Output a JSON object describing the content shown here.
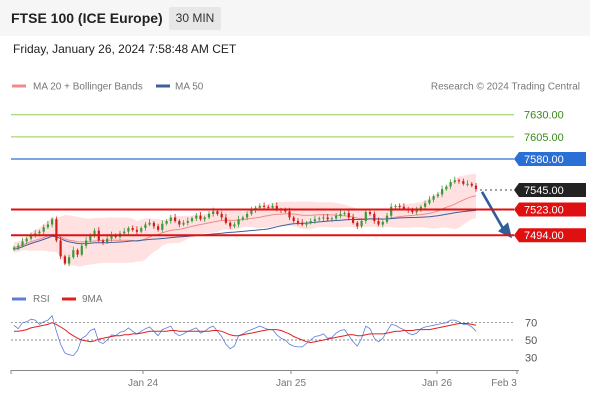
{
  "header": {
    "title": "FTSE 100 (ICE Europe)",
    "interval": "30 MIN"
  },
  "timestamp": "Friday, January 26, 2024 7:58:48 AM CET",
  "legend": {
    "ma20": "MA 20 + Bollinger Bands",
    "ma50": "MA 50"
  },
  "credit": "Research © 2024 Trading Central",
  "rsi_legend": {
    "rsi": "RSI",
    "ma9": "9MA"
  },
  "colors": {
    "up": "#3a9a3a",
    "down": "#d11a1a",
    "ma20": "#f08a8a",
    "bollinger": "#ffdcdc",
    "ma50": "#3e5f9a",
    "resistance": "#8fcf4f",
    "pivot_blue": "#2a6fd6",
    "support_red": "#e01010",
    "rsi": "#5b7fd6",
    "rsi_ma": "#e02020",
    "arrow": "#2e5f9c"
  },
  "chart_data": [
    {
      "type": "candlestick",
      "title": "FTSE 100 (ICE Europe)",
      "interval": "30 MIN",
      "x_ticks": [
        "Jan 24",
        "Jan 25",
        "Jan 26",
        "Feb 3"
      ],
      "ylim": [
        7440,
        7650
      ],
      "series": [
        {
          "name": "MA 20 + Bollinger Bands"
        },
        {
          "name": "MA 50"
        }
      ],
      "levels": [
        {
          "value": 7630.0,
          "label": "7630.00",
          "type": "resistance"
        },
        {
          "value": 7605.0,
          "label": "7605.00",
          "type": "resistance"
        },
        {
          "value": 7580.0,
          "label": "7580.00",
          "type": "pivot"
        },
        {
          "value": 7545.0,
          "label": "7545.00",
          "type": "last"
        },
        {
          "value": 7523.0,
          "label": "7523.00",
          "type": "support"
        },
        {
          "value": 7494.0,
          "label": "7494.00",
          "type": "support"
        }
      ],
      "forecast": {
        "from": 7543,
        "to": 7494,
        "direction": "down"
      },
      "closes": [
        7480,
        7482,
        7487,
        7490,
        7494,
        7496,
        7498,
        7503,
        7506,
        7512,
        7488,
        7470,
        7462,
        7469,
        7477,
        7472,
        7482,
        7488,
        7494,
        7499,
        7488,
        7486,
        7490,
        7494,
        7492,
        7496,
        7498,
        7502,
        7500,
        7498,
        7502,
        7506,
        7508,
        7504,
        7500,
        7507,
        7510,
        7514,
        7510,
        7506,
        7508,
        7510,
        7513,
        7516,
        7512,
        7514,
        7518,
        7521,
        7518,
        7514,
        7508,
        7504,
        7506,
        7512,
        7514,
        7518,
        7522,
        7525,
        7527,
        7526,
        7525,
        7527,
        7523,
        7522,
        7521,
        7514,
        7510,
        7508,
        7506,
        7508,
        7510,
        7512,
        7513,
        7514,
        7512,
        7513,
        7516,
        7518,
        7519,
        7514,
        7508,
        7504,
        7510,
        7520,
        7518,
        7510,
        7506,
        7509,
        7516,
        7526,
        7527,
        7526,
        7524,
        7522,
        7520,
        7522,
        7526,
        7530,
        7534,
        7538,
        7540,
        7546,
        7549,
        7554,
        7556,
        7555,
        7552,
        7552,
        7550,
        7546
      ],
      "rsi": {
        "ylim": [
          20,
          80
        ],
        "ticks": [
          70,
          50,
          30
        ],
        "values": [
          67,
          63,
          70,
          71,
          74,
          73,
          68,
          71,
          73,
          78,
          60,
          45,
          35,
          33,
          32,
          38,
          52,
          55,
          61,
          63,
          48,
          46,
          50,
          56,
          55,
          59,
          60,
          64,
          60,
          57,
          60,
          63,
          65,
          60,
          55,
          62,
          64,
          66,
          58,
          55,
          57,
          60,
          62,
          64,
          58,
          60,
          64,
          66,
          60,
          54,
          45,
          40,
          43,
          55,
          57,
          60,
          62,
          64,
          66,
          64,
          62,
          62,
          56,
          52,
          50,
          45,
          43,
          42,
          42,
          46,
          50,
          54,
          55,
          57,
          52,
          53,
          58,
          61,
          62,
          55,
          48,
          43,
          52,
          66,
          63,
          52,
          48,
          52,
          60,
          68,
          67,
          64,
          62,
          58,
          56,
          58,
          63,
          65,
          66,
          67,
          68,
          69,
          70,
          73,
          73,
          71,
          68,
          68,
          65,
          60
        ],
        "ma": [
          60,
          60,
          61,
          62,
          64,
          65,
          66,
          67,
          68,
          70,
          68,
          65,
          62,
          58,
          55,
          52,
          50,
          49,
          48,
          49,
          51,
          52,
          53,
          54,
          55,
          55,
          56,
          56,
          57,
          57,
          58,
          59,
          60,
          60,
          60,
          60,
          60,
          61,
          61,
          60,
          60,
          60,
          60,
          60,
          60,
          60,
          60,
          61,
          61,
          60,
          58,
          56,
          55,
          55,
          56,
          57,
          58,
          59,
          60,
          61,
          62,
          62,
          62,
          61,
          59,
          57,
          54,
          52,
          50,
          48,
          47,
          48,
          49,
          50,
          51,
          52,
          53,
          54,
          55,
          56,
          56,
          55,
          55,
          56,
          57,
          57,
          57,
          57,
          58,
          59,
          60,
          60,
          61,
          61,
          61,
          62,
          62,
          62,
          62,
          63,
          64,
          65,
          66,
          67,
          68,
          69,
          69,
          69,
          68,
          67
        ]
      }
    }
  ]
}
